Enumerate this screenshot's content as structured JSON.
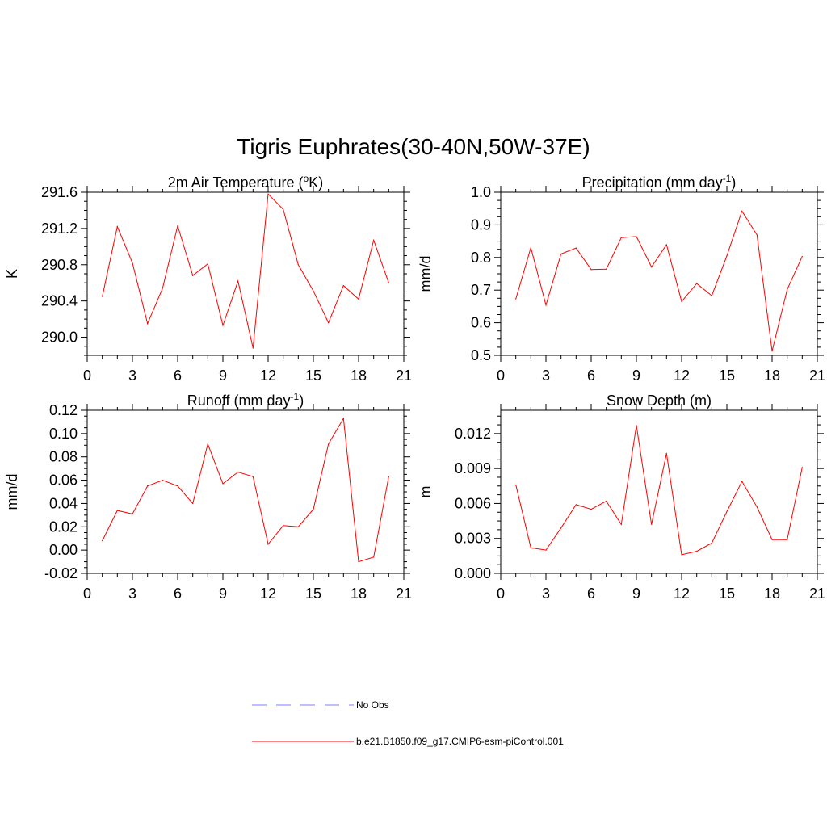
{
  "figure_title": "Tigris Euphrates(30-40N,50W-37E)",
  "legend": {
    "items": [
      {
        "label": "No Obs",
        "style": "dashed",
        "color": "#9999ff"
      },
      {
        "label": "b.e21.B1850.f09_g17.CMIP6-esm-piControl.001",
        "style": "solid",
        "color": "#ff0000"
      }
    ]
  },
  "series_color": "#ff0000",
  "chart_data": [
    {
      "type": "line",
      "title": "2m Air Temperature (",
      "title_sup": "o",
      "title_tail": "K)",
      "xlabel": "",
      "ylabel": "K",
      "xlim": [
        0,
        21
      ],
      "ylim": [
        289.8,
        291.6
      ],
      "xticks": [
        0,
        3,
        6,
        9,
        12,
        15,
        18,
        21
      ],
      "yticks": [
        290.0,
        290.4,
        290.8,
        291.2,
        291.6
      ],
      "ytick_labels": [
        "290.0",
        "290.4",
        "290.8",
        "291.2",
        "291.6"
      ],
      "x": [
        1,
        2,
        3,
        4,
        5,
        6,
        7,
        8,
        9,
        10,
        11,
        12,
        13,
        14,
        15,
        16,
        17,
        18,
        19,
        20
      ],
      "series": [
        {
          "values": [
            290.45,
            291.22,
            290.82,
            290.15,
            290.54,
            291.23,
            290.68,
            290.81,
            290.13,
            290.62,
            289.88,
            291.58,
            291.41,
            290.8,
            290.51,
            290.16,
            290.57,
            290.42,
            291.07,
            290.6
          ]
        }
      ],
      "grid": false
    },
    {
      "type": "line",
      "title": "Precipitation (mm day",
      "title_sup": "-1",
      "title_tail": ")",
      "xlabel": "",
      "ylabel": "mm/d",
      "xlim": [
        0,
        21
      ],
      "ylim": [
        0.5,
        1.0
      ],
      "xticks": [
        0,
        3,
        6,
        9,
        12,
        15,
        18,
        21
      ],
      "yticks": [
        0.5,
        0.6,
        0.7,
        0.8,
        0.9,
        1.0
      ],
      "ytick_labels": [
        "0.5",
        "0.6",
        "0.7",
        "0.8",
        "0.9",
        "1.0"
      ],
      "x": [
        1,
        2,
        3,
        4,
        5,
        6,
        7,
        8,
        9,
        10,
        11,
        12,
        13,
        14,
        15,
        16,
        17,
        18,
        19,
        20
      ],
      "series": [
        {
          "values": [
            0.673,
            0.83,
            0.654,
            0.811,
            0.829,
            0.763,
            0.764,
            0.861,
            0.864,
            0.771,
            0.839,
            0.665,
            0.72,
            0.683,
            0.805,
            0.942,
            0.869,
            0.513,
            0.702,
            0.803
          ]
        }
      ],
      "grid": false
    },
    {
      "type": "line",
      "title": "Runoff (mm day",
      "title_sup": "-1",
      "title_tail": ")",
      "xlabel": "",
      "ylabel": "mm/d",
      "xlim": [
        0,
        21
      ],
      "ylim": [
        -0.02,
        0.12
      ],
      "xticks": [
        0,
        3,
        6,
        9,
        12,
        15,
        18,
        21
      ],
      "yticks": [
        -0.02,
        0.0,
        0.02,
        0.04,
        0.06,
        0.08,
        0.1,
        0.12
      ],
      "ytick_labels": [
        "-0.02",
        "0.00",
        "0.02",
        "0.04",
        "0.06",
        "0.08",
        "0.10",
        "0.12"
      ],
      "x": [
        1,
        2,
        3,
        4,
        5,
        6,
        7,
        8,
        9,
        10,
        11,
        12,
        13,
        14,
        15,
        16,
        17,
        18,
        19,
        20
      ],
      "series": [
        {
          "values": [
            0.008,
            0.034,
            0.031,
            0.055,
            0.06,
            0.055,
            0.04,
            0.091,
            0.057,
            0.067,
            0.063,
            0.005,
            0.021,
            0.02,
            0.035,
            0.091,
            0.113,
            -0.01,
            -0.006,
            0.063
          ]
        }
      ],
      "grid": false
    },
    {
      "type": "line",
      "title": "Snow Depth (m)",
      "title_sup": "",
      "title_tail": "",
      "xlabel": "",
      "ylabel": "m",
      "xlim": [
        0,
        21
      ],
      "ylim": [
        0.0,
        0.014
      ],
      "xticks": [
        0,
        3,
        6,
        9,
        12,
        15,
        18,
        21
      ],
      "yticks": [
        0.0,
        0.003,
        0.006,
        0.009,
        0.012
      ],
      "ytick_labels": [
        "0.000",
        "0.003",
        "0.006",
        "0.009",
        "0.012"
      ],
      "x": [
        1,
        2,
        3,
        4,
        5,
        6,
        7,
        8,
        9,
        10,
        11,
        12,
        13,
        14,
        15,
        16,
        17,
        18,
        19,
        20
      ],
      "series": [
        {
          "values": [
            0.0076,
            0.0022,
            0.002,
            0.0039,
            0.0059,
            0.0055,
            0.0062,
            0.0042,
            0.0127,
            0.0042,
            0.0103,
            0.0016,
            0.0019,
            0.0026,
            0.0053,
            0.0079,
            0.0057,
            0.0029,
            0.0029,
            0.0091
          ]
        }
      ],
      "grid": false
    }
  ]
}
